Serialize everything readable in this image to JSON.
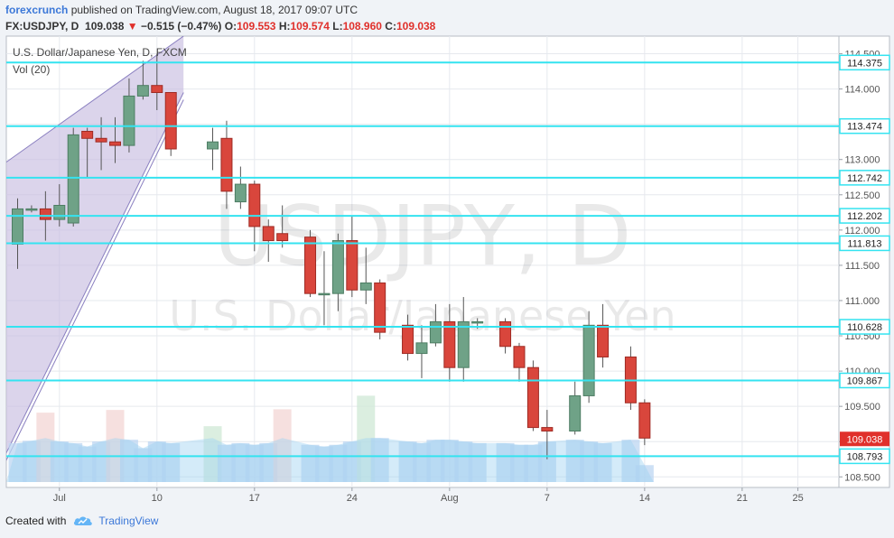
{
  "header": {
    "author": "forexcrunch",
    "published_text": "published on TradingView.com, August 18, 2017 09:07 UTC"
  },
  "quote": {
    "symbol": "FX:USDJPY, D",
    "last": "109.038",
    "arrow": "▼",
    "change": "−0.515 (−0.47%)",
    "o_label": "O:",
    "o": "109.553",
    "h_label": "H:",
    "h": "109.574",
    "l_label": "L:",
    "l": "108.960",
    "c_label": "C:",
    "c": "109.038"
  },
  "footer": {
    "created_with": "Created with",
    "brand": "TradingView",
    "logo_icon": "tradingview-cloud-icon"
  },
  "colors": {
    "up": "#6fa287",
    "up_dark": "#4d7d63",
    "down": "#d9463c",
    "down_dark": "#9e2b24",
    "level_line": "#34e3f0",
    "channel_fill": "#c8bde0",
    "channel_edge": "#8a7fc0",
    "price_tag": "#e0302b"
  },
  "chart_data": {
    "type": "candlestick",
    "legend_title": "U.S. Dollar/Japanese Yen, D, FXCM",
    "legend_sub": "Vol (20)",
    "watermark_1": "USDJPY, D",
    "watermark_2": "U.S. Dollar/Japanese Yen",
    "ylim": [
      108.35,
      114.75
    ],
    "y_ticks": [
      "114.500",
      "114.000",
      "113.500",
      "113.000",
      "112.500",
      "112.000",
      "111.500",
      "111.000",
      "110.500",
      "110.000",
      "109.500",
      "109.000",
      "108.500"
    ],
    "x_ticks": [
      {
        "label": "Jul",
        "day": 3
      },
      {
        "label": "10",
        "day": 10
      },
      {
        "label": "17",
        "day": 17
      },
      {
        "label": "24",
        "day": 24
      },
      {
        "label": "Aug",
        "day": 31
      },
      {
        "label": "7",
        "day": 38
      },
      {
        "label": "14",
        "day": 45
      },
      {
        "label": "21",
        "day": 52
      },
      {
        "label": "25",
        "day": 56
      }
    ],
    "levels": [
      "114.375",
      "113.474",
      "112.742",
      "112.202",
      "111.813",
      "110.628",
      "109.867",
      "108.793"
    ],
    "last_price": "109.038",
    "channel": {
      "start_day": 0,
      "end_day": 11,
      "lower_start": 108.8,
      "lower_end": 113.95,
      "upper_start": 112.95,
      "upper_end": 114.75
    },
    "candles": [
      {
        "day": 0,
        "o": 111.8,
        "h": 112.45,
        "l": 111.45,
        "c": 112.3
      },
      {
        "day": 1,
        "o": 112.3,
        "h": 112.35,
        "l": 112.25,
        "c": 112.3
      },
      {
        "day": 2,
        "o": 112.3,
        "h": 112.55,
        "l": 111.85,
        "c": 112.15
      },
      {
        "day": 3,
        "o": 112.15,
        "h": 112.65,
        "l": 112.05,
        "c": 112.35
      },
      {
        "day": 4,
        "o": 112.1,
        "h": 113.45,
        "l": 112.05,
        "c": 113.35
      },
      {
        "day": 5,
        "o": 113.4,
        "h": 113.45,
        "l": 112.75,
        "c": 113.3
      },
      {
        "day": 6,
        "o": 113.3,
        "h": 113.6,
        "l": 112.85,
        "c": 113.25
      },
      {
        "day": 7,
        "o": 113.25,
        "h": 113.6,
        "l": 112.95,
        "c": 113.2
      },
      {
        "day": 8,
        "o": 113.2,
        "h": 114.15,
        "l": 113.1,
        "c": 113.9
      },
      {
        "day": 9,
        "o": 113.9,
        "h": 114.4,
        "l": 113.85,
        "c": 114.05
      },
      {
        "day": 10,
        "o": 114.05,
        "h": 114.5,
        "l": 113.7,
        "c": 113.95
      },
      {
        "day": 11,
        "o": 113.95,
        "h": 113.95,
        "l": 113.05,
        "c": 113.15
      },
      {
        "day": 14,
        "o": 113.15,
        "h": 113.45,
        "l": 112.85,
        "c": 113.25
      },
      {
        "day": 15,
        "o": 113.3,
        "h": 113.55,
        "l": 112.3,
        "c": 112.55
      },
      {
        "day": 16,
        "o": 112.4,
        "h": 112.9,
        "l": 112.3,
        "c": 112.65
      },
      {
        "day": 17,
        "o": 112.65,
        "h": 112.7,
        "l": 111.7,
        "c": 112.05
      },
      {
        "day": 18,
        "o": 112.05,
        "h": 112.15,
        "l": 111.55,
        "c": 111.85
      },
      {
        "day": 19,
        "o": 111.95,
        "h": 112.35,
        "l": 111.75,
        "c": 111.85
      },
      {
        "day": 21,
        "o": 111.9,
        "h": 112.0,
        "l": 111.05,
        "c": 111.1
      },
      {
        "day": 22,
        "o": 111.1,
        "h": 111.7,
        "l": 110.65,
        "c": 111.1
      },
      {
        "day": 23,
        "o": 111.1,
        "h": 111.95,
        "l": 110.85,
        "c": 111.85
      },
      {
        "day": 24,
        "o": 111.85,
        "h": 112.2,
        "l": 111.05,
        "c": 111.15
      },
      {
        "day": 25,
        "o": 111.15,
        "h": 111.75,
        "l": 110.95,
        "c": 111.25
      },
      {
        "day": 26,
        "o": 111.25,
        "h": 111.3,
        "l": 110.45,
        "c": 110.55
      },
      {
        "day": 28,
        "o": 110.65,
        "h": 110.8,
        "l": 110.15,
        "c": 110.25
      },
      {
        "day": 29,
        "o": 110.25,
        "h": 110.65,
        "l": 109.9,
        "c": 110.4
      },
      {
        "day": 30,
        "o": 110.4,
        "h": 110.95,
        "l": 110.35,
        "c": 110.7
      },
      {
        "day": 31,
        "o": 110.7,
        "h": 110.95,
        "l": 109.85,
        "c": 110.05
      },
      {
        "day": 32,
        "o": 110.05,
        "h": 111.05,
        "l": 109.85,
        "c": 110.7
      },
      {
        "day": 33,
        "o": 110.7,
        "h": 110.75,
        "l": 110.6,
        "c": 110.7
      },
      {
        "day": 35,
        "o": 110.7,
        "h": 110.75,
        "l": 110.25,
        "c": 110.35
      },
      {
        "day": 36,
        "o": 110.35,
        "h": 110.4,
        "l": 109.85,
        "c": 110.05
      },
      {
        "day": 37,
        "o": 110.05,
        "h": 110.15,
        "l": 109.15,
        "c": 109.2
      },
      {
        "day": 38,
        "o": 109.2,
        "h": 109.45,
        "l": 108.75,
        "c": 109.15
      },
      {
        "day": 40,
        "o": 109.15,
        "h": 109.85,
        "l": 109.1,
        "c": 109.65
      },
      {
        "day": 41,
        "o": 109.65,
        "h": 110.85,
        "l": 109.55,
        "c": 110.65
      },
      {
        "day": 42,
        "o": 110.65,
        "h": 110.95,
        "l": 110.05,
        "c": 110.2
      },
      {
        "day": 44,
        "o": 110.2,
        "h": 110.35,
        "l": 109.45,
        "c": 109.55
      },
      {
        "day": 45,
        "o": 109.55,
        "h": 109.6,
        "l": 108.95,
        "c": 109.05
      }
    ],
    "volume_scale": 4000,
    "volume": [
      {
        "day": 0,
        "v": 1150
      },
      {
        "day": 1,
        "v": 1220
      },
      {
        "day": 2,
        "v": 2050
      },
      {
        "day": 3,
        "v": 1200
      },
      {
        "day": 4,
        "v": 1150
      },
      {
        "day": 5,
        "v": 1050
      },
      {
        "day": 6,
        "v": 1200
      },
      {
        "day": 7,
        "v": 2130
      },
      {
        "day": 8,
        "v": 1250
      },
      {
        "day": 9,
        "v": 1000
      },
      {
        "day": 10,
        "v": 1200
      },
      {
        "day": 11,
        "v": 1150
      },
      {
        "day": 14,
        "v": 1650
      },
      {
        "day": 15,
        "v": 1100
      },
      {
        "day": 16,
        "v": 1150
      },
      {
        "day": 17,
        "v": 1100
      },
      {
        "day": 18,
        "v": 1150
      },
      {
        "day": 19,
        "v": 2150
      },
      {
        "day": 21,
        "v": 1100
      },
      {
        "day": 22,
        "v": 1050
      },
      {
        "day": 23,
        "v": 1100
      },
      {
        "day": 24,
        "v": 1200
      },
      {
        "day": 25,
        "v": 2550
      },
      {
        "day": 26,
        "v": 1300
      },
      {
        "day": 28,
        "v": 1200
      },
      {
        "day": 29,
        "v": 1150
      },
      {
        "day": 30,
        "v": 1250
      },
      {
        "day": 31,
        "v": 1250
      },
      {
        "day": 32,
        "v": 1200
      },
      {
        "day": 33,
        "v": 1150
      },
      {
        "day": 35,
        "v": 1150
      },
      {
        "day": 36,
        "v": 1100
      },
      {
        "day": 37,
        "v": 1100
      },
      {
        "day": 38,
        "v": 1200
      },
      {
        "day": 40,
        "v": 1250
      },
      {
        "day": 41,
        "v": 1200
      },
      {
        "day": 42,
        "v": 1150
      },
      {
        "day": 44,
        "v": 1250
      },
      {
        "day": 45,
        "v": 500
      }
    ]
  }
}
